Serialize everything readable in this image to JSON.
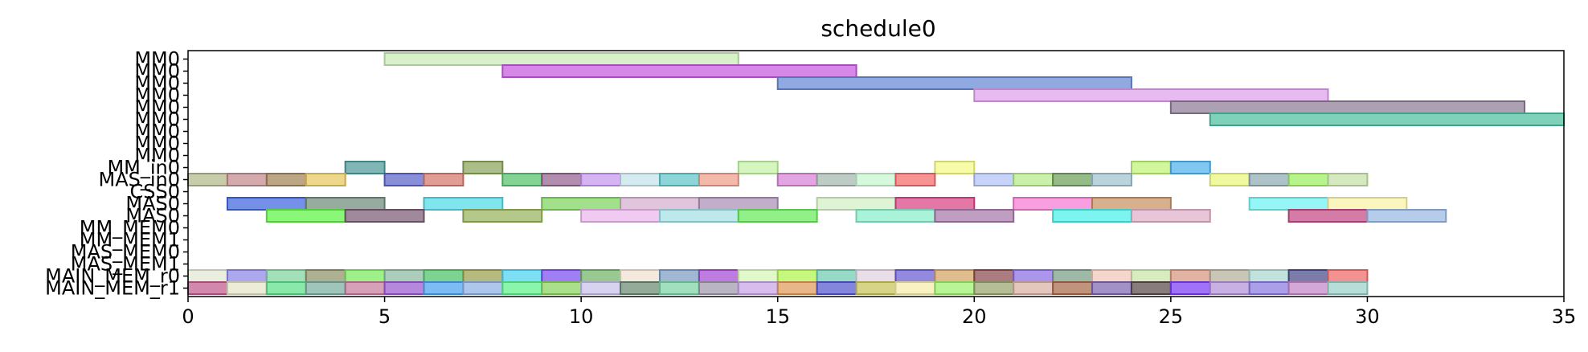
{
  "chart_data": {
    "type": "gantt",
    "title": "schedule0",
    "xlim": [
      0,
      35
    ],
    "xticks": [
      0,
      5,
      10,
      15,
      20,
      25,
      30,
      35
    ],
    "rows": [
      "MM0",
      "MM0",
      "MM0",
      "MM0",
      "MM0",
      "MM0",
      "MM0",
      "MM0",
      "MM0",
      "MM_in0",
      "MAS_in0",
      "CSS0",
      "MAS0",
      "MAS0",
      "MM_MEM0",
      "MM_MEM1",
      "MAS_MEM0",
      "MAS_MEM1",
      "MAIN_MEM_r0",
      "MAIN_MEM_r1"
    ],
    "tasks": [
      {
        "row": 0,
        "start": 5,
        "end": 14,
        "color": "#c8ecb4"
      },
      {
        "row": 1,
        "start": 8,
        "end": 17,
        "color": "#c659de"
      },
      {
        "row": 2,
        "start": 15,
        "end": 24,
        "color": "#6688d6"
      },
      {
        "row": 3,
        "start": 20,
        "end": 29,
        "color": "#dea0ec"
      },
      {
        "row": 4,
        "start": 25,
        "end": 34,
        "color": "#8e7c96"
      },
      {
        "row": 5,
        "start": 26,
        "end": 35,
        "color": "#4fbf9f"
      },
      {
        "row": 9,
        "start": 4,
        "end": 5,
        "color": "#4f9a99"
      },
      {
        "row": 9,
        "start": 7,
        "end": 8,
        "color": "#8aa45c"
      },
      {
        "row": 9,
        "start": 14,
        "end": 15,
        "color": "#c6f2a6"
      },
      {
        "row": 9,
        "start": 19,
        "end": 20,
        "color": "#f5fa87"
      },
      {
        "row": 9,
        "start": 24,
        "end": 25,
        "color": "#bff274"
      },
      {
        "row": 9,
        "start": 25,
        "end": 26,
        "color": "#4fb3ec"
      },
      {
        "row": 10,
        "start": 0,
        "end": 1,
        "color": "#b2b88a"
      },
      {
        "row": 10,
        "start": 1,
        "end": 2,
        "color": "#c28a8e"
      },
      {
        "row": 10,
        "start": 2,
        "end": 3,
        "color": "#a38458"
      },
      {
        "row": 10,
        "start": 3,
        "end": 4,
        "color": "#e5c75e"
      },
      {
        "row": 10,
        "start": 5,
        "end": 6,
        "color": "#5b62c9"
      },
      {
        "row": 10,
        "start": 6,
        "end": 7,
        "color": "#d5776c"
      },
      {
        "row": 10,
        "start": 8,
        "end": 9,
        "color": "#53c26c"
      },
      {
        "row": 10,
        "start": 9,
        "end": 10,
        "color": "#93628f"
      },
      {
        "row": 10,
        "start": 10,
        "end": 11,
        "color": "#c597f0"
      },
      {
        "row": 10,
        "start": 11,
        "end": 12,
        "color": "#c5e3ea"
      },
      {
        "row": 10,
        "start": 12,
        "end": 13,
        "color": "#5fc6cc"
      },
      {
        "row": 10,
        "start": 13,
        "end": 14,
        "color": "#ee9e8a"
      },
      {
        "row": 10,
        "start": 15,
        "end": 16,
        "color": "#d782d6"
      },
      {
        "row": 10,
        "start": 16,
        "end": 17,
        "color": "#a6b9b0"
      },
      {
        "row": 10,
        "start": 17,
        "end": 18,
        "color": "#c6f6d0"
      },
      {
        "row": 10,
        "start": 18,
        "end": 19,
        "color": "#f46a6a"
      },
      {
        "row": 10,
        "start": 20,
        "end": 21,
        "color": "#b1c2f5"
      },
      {
        "row": 10,
        "start": 21,
        "end": 22,
        "color": "#b6ea8a"
      },
      {
        "row": 10,
        "start": 22,
        "end": 23,
        "color": "#6ea15c"
      },
      {
        "row": 10,
        "start": 23,
        "end": 24,
        "color": "#9fc2cf"
      },
      {
        "row": 10,
        "start": 26,
        "end": 27,
        "color": "#eaf77a"
      },
      {
        "row": 10,
        "start": 27,
        "end": 28,
        "color": "#8fabb4"
      },
      {
        "row": 10,
        "start": 28,
        "end": 29,
        "color": "#9df05f"
      },
      {
        "row": 10,
        "start": 29,
        "end": 30,
        "color": "#c4e0a6"
      },
      {
        "row": 12,
        "start": 1,
        "end": 3,
        "color": "#3f65de"
      },
      {
        "row": 12,
        "start": 3,
        "end": 5,
        "color": "#6f8c7a"
      },
      {
        "row": 12,
        "start": 6,
        "end": 8,
        "color": "#4fdbe6"
      },
      {
        "row": 12,
        "start": 9,
        "end": 11,
        "color": "#7ed45e"
      },
      {
        "row": 12,
        "start": 11,
        "end": 13,
        "color": "#d4aed0"
      },
      {
        "row": 12,
        "start": 13,
        "end": 15,
        "color": "#ab8fb6"
      },
      {
        "row": 12,
        "start": 16,
        "end": 18,
        "color": "#d2f0c4"
      },
      {
        "row": 12,
        "start": 18,
        "end": 20,
        "color": "#d84484"
      },
      {
        "row": 12,
        "start": 21,
        "end": 23,
        "color": "#f47ad2"
      },
      {
        "row": 12,
        "start": 23,
        "end": 25,
        "color": "#c99262"
      },
      {
        "row": 12,
        "start": 27,
        "end": 29,
        "color": "#6ef2f2"
      },
      {
        "row": 12,
        "start": 29,
        "end": 31,
        "color": "#f8f2a4"
      },
      {
        "row": 13,
        "start": 2,
        "end": 4,
        "color": "#5ef444"
      },
      {
        "row": 13,
        "start": 4,
        "end": 6,
        "color": "#7a5c74"
      },
      {
        "row": 13,
        "start": 7,
        "end": 9,
        "color": "#95b35c"
      },
      {
        "row": 13,
        "start": 10,
        "end": 12,
        "color": "#ecb6ec"
      },
      {
        "row": 13,
        "start": 12,
        "end": 14,
        "color": "#a4e0e6"
      },
      {
        "row": 13,
        "start": 14,
        "end": 16,
        "color": "#66ea5a"
      },
      {
        "row": 13,
        "start": 17,
        "end": 19,
        "color": "#88eec9"
      },
      {
        "row": 13,
        "start": 19,
        "end": 21,
        "color": "#a878aa"
      },
      {
        "row": 13,
        "start": 22,
        "end": 24,
        "color": "#4af0ea"
      },
      {
        "row": 13,
        "start": 24,
        "end": 26,
        "color": "#e0b0c8"
      },
      {
        "row": 13,
        "start": 28,
        "end": 30,
        "color": "#c44884"
      },
      {
        "row": 13,
        "start": 30,
        "end": 32,
        "color": "#98b8e2"
      },
      {
        "row": 18,
        "start": 0,
        "end": 1,
        "color": "#e2e8d2"
      },
      {
        "row": 18,
        "start": 1,
        "end": 2,
        "color": "#8e86e8"
      },
      {
        "row": 18,
        "start": 2,
        "end": 3,
        "color": "#7fd49e"
      },
      {
        "row": 18,
        "start": 3,
        "end": 4,
        "color": "#8f9268"
      },
      {
        "row": 18,
        "start": 4,
        "end": 5,
        "color": "#79ea5c"
      },
      {
        "row": 18,
        "start": 5,
        "end": 6,
        "color": "#8cba9e"
      },
      {
        "row": 18,
        "start": 6,
        "end": 7,
        "color": "#4ec266"
      },
      {
        "row": 18,
        "start": 7,
        "end": 8,
        "color": "#9aa04c"
      },
      {
        "row": 18,
        "start": 8,
        "end": 9,
        "color": "#4ad2f2"
      },
      {
        "row": 18,
        "start": 9,
        "end": 10,
        "color": "#7b4ef0"
      },
      {
        "row": 18,
        "start": 10,
        "end": 11,
        "color": "#6fb466"
      },
      {
        "row": 18,
        "start": 11,
        "end": 12,
        "color": "#f0e0d0"
      },
      {
        "row": 18,
        "start": 12,
        "end": 13,
        "color": "#7c9cc4"
      },
      {
        "row": 18,
        "start": 13,
        "end": 14,
        "color": "#a548d4"
      },
      {
        "row": 18,
        "start": 14,
        "end": 15,
        "color": "#d6f6b6"
      },
      {
        "row": 18,
        "start": 15,
        "end": 16,
        "color": "#b0f44c"
      },
      {
        "row": 18,
        "start": 16,
        "end": 17,
        "color": "#6ccab0"
      },
      {
        "row": 18,
        "start": 17,
        "end": 18,
        "color": "#e0d0de"
      },
      {
        "row": 18,
        "start": 18,
        "end": 19,
        "color": "#6a5cd2"
      },
      {
        "row": 18,
        "start": 19,
        "end": 20,
        "color": "#d4a462"
      },
      {
        "row": 18,
        "start": 20,
        "end": 21,
        "color": "#8c4a50"
      },
      {
        "row": 18,
        "start": 21,
        "end": 22,
        "color": "#8a6ee4"
      },
      {
        "row": 18,
        "start": 22,
        "end": 23,
        "color": "#7a9e86"
      },
      {
        "row": 18,
        "start": 23,
        "end": 24,
        "color": "#f0c8b6"
      },
      {
        "row": 18,
        "start": 24,
        "end": 25,
        "color": "#c8e6a8"
      },
      {
        "row": 18,
        "start": 25,
        "end": 26,
        "color": "#d6967e"
      },
      {
        "row": 18,
        "start": 26,
        "end": 27,
        "color": "#b4b09c"
      },
      {
        "row": 18,
        "start": 27,
        "end": 28,
        "color": "#aad8d0"
      },
      {
        "row": 18,
        "start": 28,
        "end": 29,
        "color": "#4a4a8a"
      },
      {
        "row": 18,
        "start": 29,
        "end": 30,
        "color": "#f06868"
      },
      {
        "row": 19,
        "start": 0,
        "end": 1,
        "color": "#c05a8c"
      },
      {
        "row": 19,
        "start": 1,
        "end": 2,
        "color": "#e4e4c8"
      },
      {
        "row": 19,
        "start": 2,
        "end": 3,
        "color": "#5ce08a"
      },
      {
        "row": 19,
        "start": 3,
        "end": 4,
        "color": "#7aaea0"
      },
      {
        "row": 19,
        "start": 4,
        "end": 5,
        "color": "#c87a9c"
      },
      {
        "row": 19,
        "start": 5,
        "end": 6,
        "color": "#9a5ad0"
      },
      {
        "row": 19,
        "start": 6,
        "end": 7,
        "color": "#4aa2f0"
      },
      {
        "row": 19,
        "start": 7,
        "end": 8,
        "color": "#90b0e4"
      },
      {
        "row": 19,
        "start": 8,
        "end": 9,
        "color": "#5cf28a"
      },
      {
        "row": 19,
        "start": 9,
        "end": 10,
        "color": "#8ad45e"
      },
      {
        "row": 19,
        "start": 10,
        "end": 11,
        "color": "#c8c0ea"
      },
      {
        "row": 19,
        "start": 11,
        "end": 12,
        "color": "#6a8a70"
      },
      {
        "row": 19,
        "start": 12,
        "end": 13,
        "color": "#7cd4a6"
      },
      {
        "row": 19,
        "start": 13,
        "end": 14,
        "color": "#a098aa"
      },
      {
        "row": 19,
        "start": 14,
        "end": 15,
        "color": "#c8a4e8"
      },
      {
        "row": 19,
        "start": 15,
        "end": 16,
        "color": "#e09a5a"
      },
      {
        "row": 19,
        "start": 16,
        "end": 17,
        "color": "#5456d0"
      },
      {
        "row": 19,
        "start": 17,
        "end": 18,
        "color": "#c8c45a"
      },
      {
        "row": 19,
        "start": 18,
        "end": 19,
        "color": "#f8ecac"
      },
      {
        "row": 19,
        "start": 19,
        "end": 20,
        "color": "#9ef06c"
      },
      {
        "row": 19,
        "start": 20,
        "end": 21,
        "color": "#98a46e"
      },
      {
        "row": 19,
        "start": 21,
        "end": 22,
        "color": "#d8b0a4"
      },
      {
        "row": 19,
        "start": 22,
        "end": 23,
        "color": "#aa6a4a"
      },
      {
        "row": 19,
        "start": 23,
        "end": 24,
        "color": "#7c66b0"
      },
      {
        "row": 19,
        "start": 24,
        "end": 25,
        "color": "#5a4a4a"
      },
      {
        "row": 19,
        "start": 25,
        "end": 26,
        "color": "#7a3cf4"
      },
      {
        "row": 19,
        "start": 26,
        "end": 27,
        "color": "#b492d8"
      },
      {
        "row": 19,
        "start": 27,
        "end": 28,
        "color": "#8a7ae0"
      },
      {
        "row": 19,
        "start": 28,
        "end": 29,
        "color": "#c486c6"
      },
      {
        "row": 19,
        "start": 29,
        "end": 30,
        "color": "#9ad0c8"
      }
    ]
  }
}
